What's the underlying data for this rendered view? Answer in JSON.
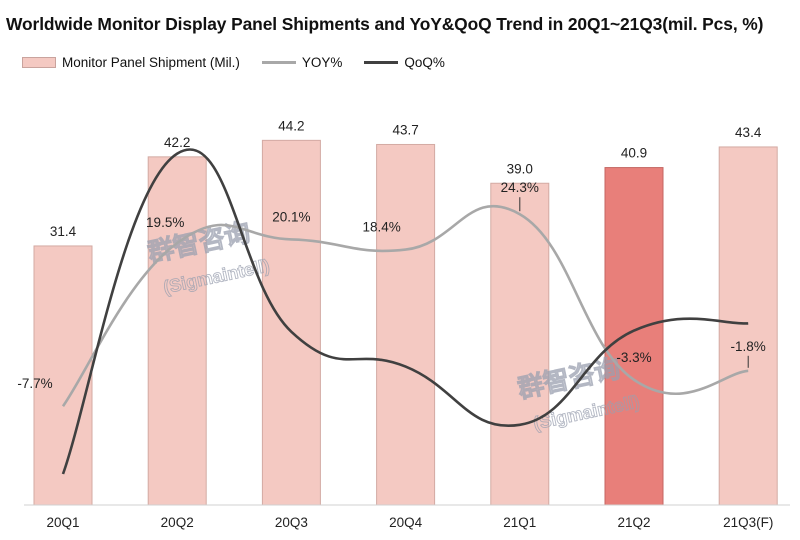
{
  "chart_data": {
    "type": "bar",
    "title": "Worldwide Monitor Display Panel Shipments and YoY&QoQ Trend in 20Q1~21Q3(mil. Pcs, %)",
    "categories": [
      "20Q1",
      "20Q2",
      "20Q3",
      "20Q4",
      "21Q1",
      "21Q2",
      "21Q3(F)"
    ],
    "legend": [
      "Monitor Panel Shipment (Mil.)",
      "YOY%",
      "QoQ%"
    ],
    "legend_position": "top-left",
    "series": [
      {
        "name": "Monitor Panel Shipment (Mil.)",
        "kind": "bar",
        "values": [
          31.4,
          42.2,
          44.2,
          43.7,
          39.0,
          40.9,
          43.4
        ],
        "labels": [
          "31.4",
          "42.2",
          "44.2",
          "43.7",
          "39.0",
          "40.9",
          "43.4"
        ],
        "color": "#f4c9c2",
        "highlight_color": "#e87f7a",
        "highlight_index": 5
      },
      {
        "name": "YOY%",
        "kind": "line",
        "values": [
          -7.7,
          19.5,
          20.1,
          18.4,
          24.3,
          -3.3,
          -1.8
        ],
        "labels": [
          "-7.7%",
          "19.5%",
          "20.1%",
          "18.4%",
          "24.3%",
          "-3.3%",
          "-1.8%"
        ],
        "color": "#a8a8a8"
      },
      {
        "name": "QoQ%",
        "kind": "line",
        "values": [
          -19.0,
          34.4,
          4.7,
          -1.1,
          -10.8,
          4.9,
          6.1
        ],
        "color": "#404040"
      }
    ],
    "bar_ylim": [
      0,
      50
    ],
    "pct_ylim": [
      -25,
      40
    ],
    "grid": false
  },
  "watermark": {
    "cn": "群智咨询",
    "en": "(Sigmaintell)"
  }
}
